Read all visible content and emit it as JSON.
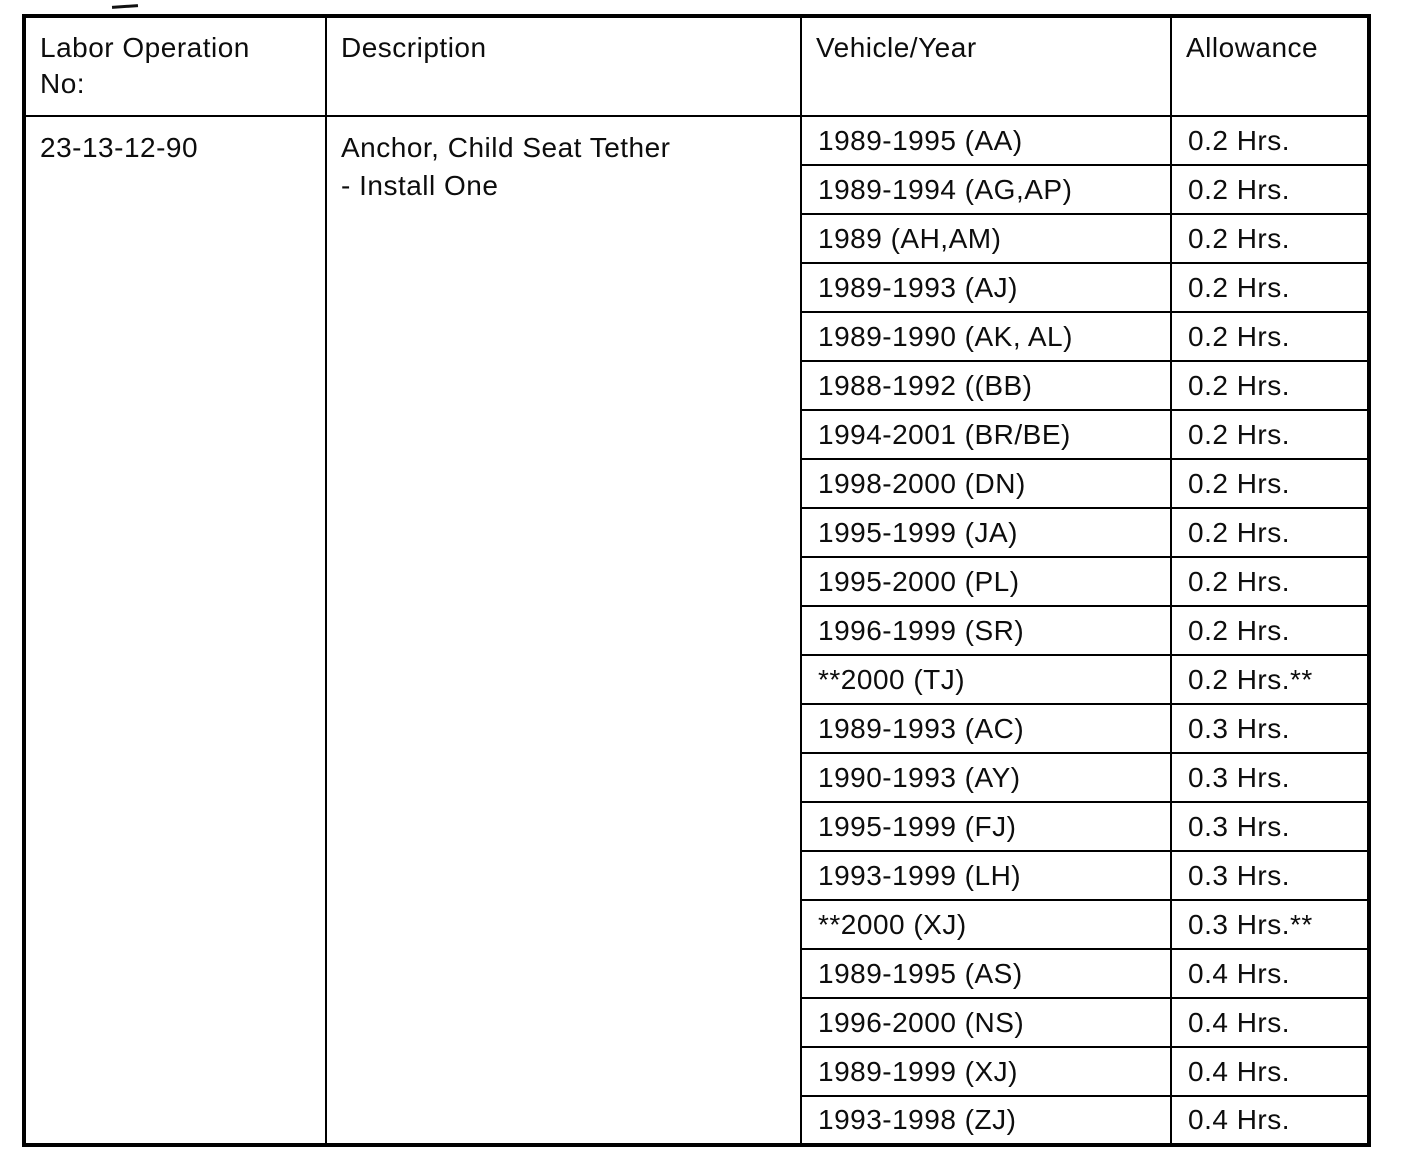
{
  "table": {
    "headers": [
      "Labor Operation\nNo:",
      "Description",
      "Vehicle/Year",
      "Allowance"
    ],
    "labor_operation_no": "23-13-12-90",
    "description": "Anchor, Child Seat Tether\n- Install One",
    "rows": [
      {
        "vehicle_year": "1989-1995 (AA)",
        "allowance": "0.2 Hrs."
      },
      {
        "vehicle_year": "1989-1994 (AG,AP)",
        "allowance": "0.2 Hrs."
      },
      {
        "vehicle_year": "1989 (AH,AM)",
        "allowance": "0.2 Hrs."
      },
      {
        "vehicle_year": "1989-1993 (AJ)",
        "allowance": "0.2 Hrs."
      },
      {
        "vehicle_year": "1989-1990 (AK, AL)",
        "allowance": "0.2 Hrs."
      },
      {
        "vehicle_year": "1988-1992 ((BB)",
        "allowance": "0.2 Hrs."
      },
      {
        "vehicle_year": "1994-2001 (BR/BE)",
        "allowance": "0.2 Hrs."
      },
      {
        "vehicle_year": "1998-2000 (DN)",
        "allowance": "0.2 Hrs."
      },
      {
        "vehicle_year": "1995-1999 (JA)",
        "allowance": "0.2 Hrs."
      },
      {
        "vehicle_year": "1995-2000 (PL)",
        "allowance": "0.2 Hrs."
      },
      {
        "vehicle_year": "1996-1999 (SR)",
        "allowance": "0.2 Hrs."
      },
      {
        "vehicle_year": "**2000 (TJ)",
        "allowance": "0.2 Hrs.**"
      },
      {
        "vehicle_year": "1989-1993 (AC)",
        "allowance": "0.3 Hrs."
      },
      {
        "vehicle_year": "1990-1993 (AY)",
        "allowance": "0.3 Hrs."
      },
      {
        "vehicle_year": "1995-1999 (FJ)",
        "allowance": "0.3 Hrs."
      },
      {
        "vehicle_year": "1993-1999 (LH)",
        "allowance": "0.3 Hrs."
      },
      {
        "vehicle_year": "**2000 (XJ)",
        "allowance": "0.3 Hrs.**"
      },
      {
        "vehicle_year": "1989-1995 (AS)",
        "allowance": "0.4 Hrs."
      },
      {
        "vehicle_year": "1996-2000 (NS)",
        "allowance": "0.4 Hrs."
      },
      {
        "vehicle_year": "1989-1999 (XJ)",
        "allowance": "0.4 Hrs."
      },
      {
        "vehicle_year": "1993-1998 (ZJ)",
        "allowance": "0.4 Hrs."
      }
    ]
  }
}
